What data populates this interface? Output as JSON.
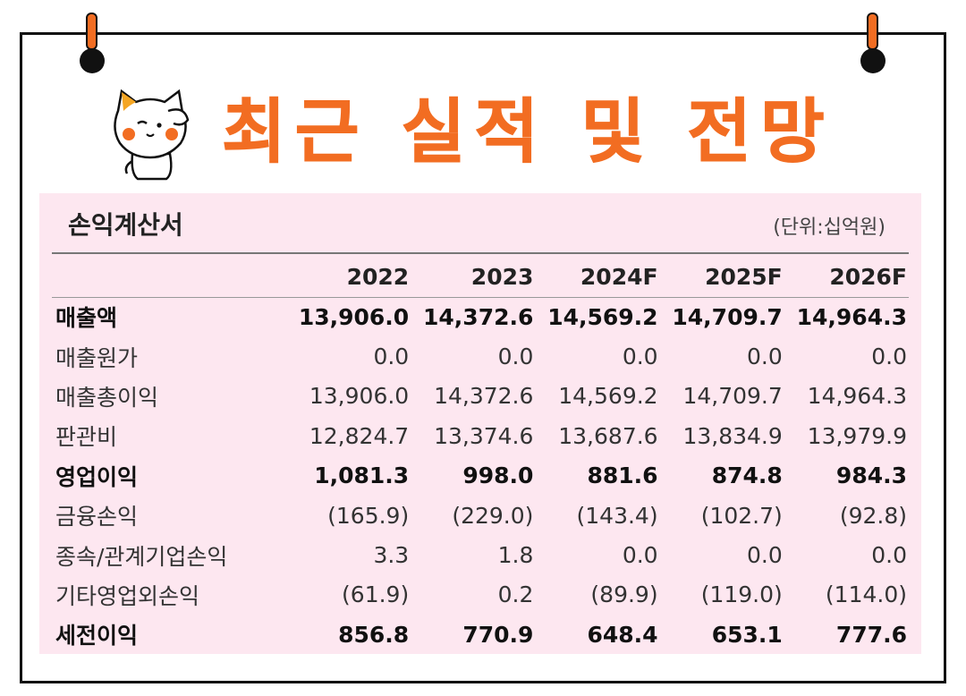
{
  "header": {
    "title": "최근 실적 및 전망"
  },
  "statement": {
    "title": "손익계산서",
    "unit": "(단위:십억원)",
    "columns": [
      "2022",
      "2023",
      "2024F",
      "2025F",
      "2026F"
    ],
    "rows": [
      {
        "label": "매출액",
        "bold": true,
        "values": [
          "13,906.0",
          "14,372.6",
          "14,569.2",
          "14,709.7",
          "14,964.3"
        ]
      },
      {
        "label": "매출원가",
        "bold": false,
        "values": [
          "0.0",
          "0.0",
          "0.0",
          "0.0",
          "0.0"
        ]
      },
      {
        "label": "매출총이익",
        "bold": false,
        "values": [
          "13,906.0",
          "14,372.6",
          "14,569.2",
          "14,709.7",
          "14,964.3"
        ]
      },
      {
        "label": "판관비",
        "bold": false,
        "values": [
          "12,824.7",
          "13,374.6",
          "13,687.6",
          "13,834.9",
          "13,979.9"
        ]
      },
      {
        "label": "영업이익",
        "bold": true,
        "values": [
          "1,081.3",
          "998.0",
          "881.6",
          "874.8",
          "984.3"
        ]
      },
      {
        "label": "금융손익",
        "bold": false,
        "values": [
          "(165.9)",
          "(229.0)",
          "(143.4)",
          "(102.7)",
          "(92.8)"
        ]
      },
      {
        "label": "종속/관계기업손익",
        "bold": false,
        "values": [
          "3.3",
          "1.8",
          "0.0",
          "0.0",
          "0.0"
        ]
      },
      {
        "label": "기타영업외손익",
        "bold": false,
        "values": [
          "(61.9)",
          "0.2",
          "(89.9)",
          "(119.0)",
          "(114.0)"
        ]
      },
      {
        "label": "세전이익",
        "bold": true,
        "values": [
          "856.8",
          "770.9",
          "648.4",
          "653.1",
          "777.6"
        ]
      }
    ]
  },
  "colors": {
    "accent": "#f26d22",
    "panel_background": "#fde7f0",
    "frame": "#111111"
  },
  "icons": {
    "clip": "pushpin-clip-icon",
    "mascot": "cat-mascot-icon"
  }
}
